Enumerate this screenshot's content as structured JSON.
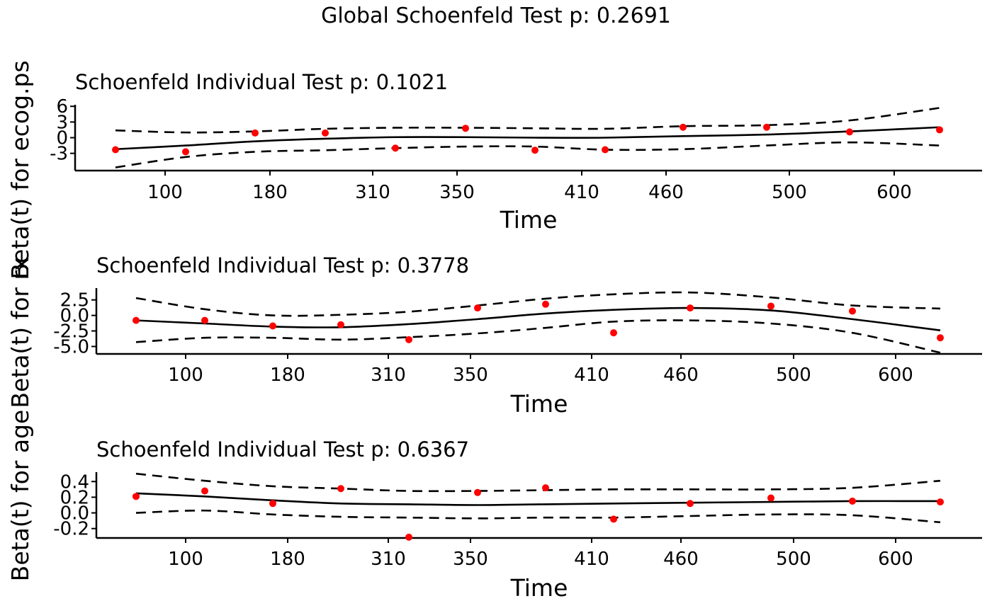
{
  "global_title": "Global Schoenfeld Test p: 0.2691",
  "chart_data": [
    {
      "type": "scatter",
      "title": "Schoenfeld Individual Test p: 0.1021",
      "xlabel": "Time",
      "ylabel": "Beta(t) for ecog.ps",
      "x_tick_labels": [
        "100",
        "180",
        "310",
        "350",
        "410",
        "460",
        "500",
        "600"
      ],
      "y_tick_labels": [
        "6",
        "3",
        "0",
        "-3"
      ],
      "y_ticks": [
        6,
        3,
        0,
        -3
      ],
      "ylim": [
        -6.3,
        6.3
      ],
      "xlim": [
        0.5,
        12.5
      ],
      "points": {
        "x": [
          1,
          2,
          3,
          4,
          5,
          6,
          7,
          8,
          9,
          10,
          11,
          12
        ],
        "y": [
          -2.3,
          -2.7,
          0.9,
          0.9,
          -2.0,
          1.8,
          -2.4,
          -2.3,
          2.0,
          2.0,
          1.1,
          1.5
        ],
        "color": "#ff0000"
      },
      "series": [
        {
          "style": "solid",
          "x": [
            1,
            2,
            3,
            4,
            5,
            6,
            7,
            8,
            9,
            10,
            11,
            12
          ],
          "y": [
            -2.2,
            -1.5,
            -0.7,
            -0.2,
            0.1,
            0.1,
            0.0,
            0.0,
            0.3,
            0.6,
            1.2,
            2.0
          ]
        },
        {
          "style": "dashed",
          "x": [
            1,
            2,
            3,
            4,
            5,
            6,
            7,
            8,
            9,
            10,
            11,
            12
          ],
          "y": [
            1.4,
            1.0,
            1.2,
            1.7,
            1.9,
            1.9,
            1.8,
            1.7,
            2.2,
            2.4,
            3.3,
            5.7
          ]
        },
        {
          "style": "dashed",
          "x": [
            1,
            2,
            3,
            4,
            5,
            6,
            7,
            8,
            9,
            10,
            11,
            12
          ],
          "y": [
            -5.7,
            -3.7,
            -2.7,
            -2.4,
            -2.0,
            -1.7,
            -1.7,
            -2.3,
            -2.2,
            -1.5,
            -0.9,
            -1.5
          ]
        }
      ]
    },
    {
      "type": "scatter",
      "title": "Schoenfeld Individual Test p: 0.3778",
      "xlabel": "Time",
      "ylabel": "Beta(t) for rx",
      "x_tick_labels": [
        "100",
        "180",
        "310",
        "350",
        "410",
        "460",
        "500",
        "600"
      ],
      "y_tick_labels": [
        "2.5",
        "0.0",
        "-2.5",
        "-5.0"
      ],
      "y_ticks": [
        2.5,
        0.0,
        -2.5,
        -5.0
      ],
      "ylim": [
        -6.2,
        4.4
      ],
      "xlim": [
        0.5,
        12.5
      ],
      "points": {
        "x": [
          1,
          2,
          3,
          4,
          5,
          6,
          7,
          8,
          9,
          10,
          11,
          12
        ],
        "y": [
          -0.8,
          -0.8,
          -1.7,
          -1.5,
          -3.9,
          1.2,
          1.8,
          -2.8,
          1.2,
          1.5,
          0.7,
          -3.6
        ],
        "color": "#ff0000"
      },
      "series": [
        {
          "style": "solid",
          "x": [
            1,
            2,
            3,
            4,
            5,
            6,
            7,
            8,
            9,
            10,
            11,
            12
          ],
          "y": [
            -0.8,
            -1.3,
            -1.8,
            -1.9,
            -1.4,
            -0.6,
            0.3,
            0.9,
            1.2,
            0.8,
            -0.6,
            -2.4
          ]
        },
        {
          "style": "dashed",
          "x": [
            1,
            2,
            3,
            4,
            5,
            6,
            7,
            8,
            9,
            10,
            11,
            12
          ],
          "y": [
            2.8,
            1.0,
            0.0,
            0.1,
            0.6,
            1.6,
            2.7,
            3.4,
            3.7,
            2.9,
            1.6,
            1.1
          ]
        },
        {
          "style": "dashed",
          "x": [
            1,
            2,
            3,
            4,
            5,
            6,
            7,
            8,
            9,
            10,
            11,
            12
          ],
          "y": [
            -4.3,
            -3.6,
            -3.6,
            -3.9,
            -3.5,
            -2.9,
            -2.0,
            -1.0,
            -0.8,
            -1.3,
            -2.8,
            -6.0
          ]
        }
      ]
    },
    {
      "type": "scatter",
      "title": "Schoenfeld Individual Test p: 0.6367",
      "xlabel": "Time",
      "ylabel": "Beta(t) for age",
      "x_tick_labels": [
        "100",
        "180",
        "310",
        "350",
        "410",
        "460",
        "500",
        "600"
      ],
      "y_tick_labels": [
        "0.4",
        "0.2",
        "0.0",
        "-0.2"
      ],
      "y_ticks": [
        0.4,
        0.2,
        0.0,
        -0.2
      ],
      "ylim": [
        -0.32,
        0.52
      ],
      "xlim": [
        0.5,
        12.5
      ],
      "points": {
        "x": [
          1,
          2,
          3,
          4,
          5,
          6,
          7,
          8,
          9,
          10,
          11,
          12
        ],
        "y": [
          0.21,
          0.28,
          0.12,
          0.31,
          -0.31,
          0.26,
          0.32,
          -0.08,
          0.12,
          0.19,
          0.15,
          0.14
        ],
        "color": "#ff0000"
      },
      "series": [
        {
          "style": "solid",
          "x": [
            1,
            2,
            3,
            4,
            5,
            6,
            7,
            8,
            9,
            10,
            11,
            12
          ],
          "y": [
            0.25,
            0.21,
            0.16,
            0.12,
            0.11,
            0.1,
            0.11,
            0.12,
            0.13,
            0.14,
            0.15,
            0.15
          ]
        },
        {
          "style": "dashed",
          "x": [
            1,
            2,
            3,
            4,
            5,
            6,
            7,
            8,
            9,
            10,
            11,
            12
          ],
          "y": [
            0.5,
            0.41,
            0.34,
            0.31,
            0.28,
            0.28,
            0.29,
            0.3,
            0.3,
            0.3,
            0.32,
            0.41
          ]
        },
        {
          "style": "dashed",
          "x": [
            1,
            2,
            3,
            4,
            5,
            6,
            7,
            8,
            9,
            10,
            11,
            12
          ],
          "y": [
            0.0,
            0.03,
            -0.02,
            -0.05,
            -0.06,
            -0.07,
            -0.06,
            -0.06,
            -0.04,
            -0.02,
            -0.03,
            -0.12
          ]
        }
      ]
    }
  ]
}
